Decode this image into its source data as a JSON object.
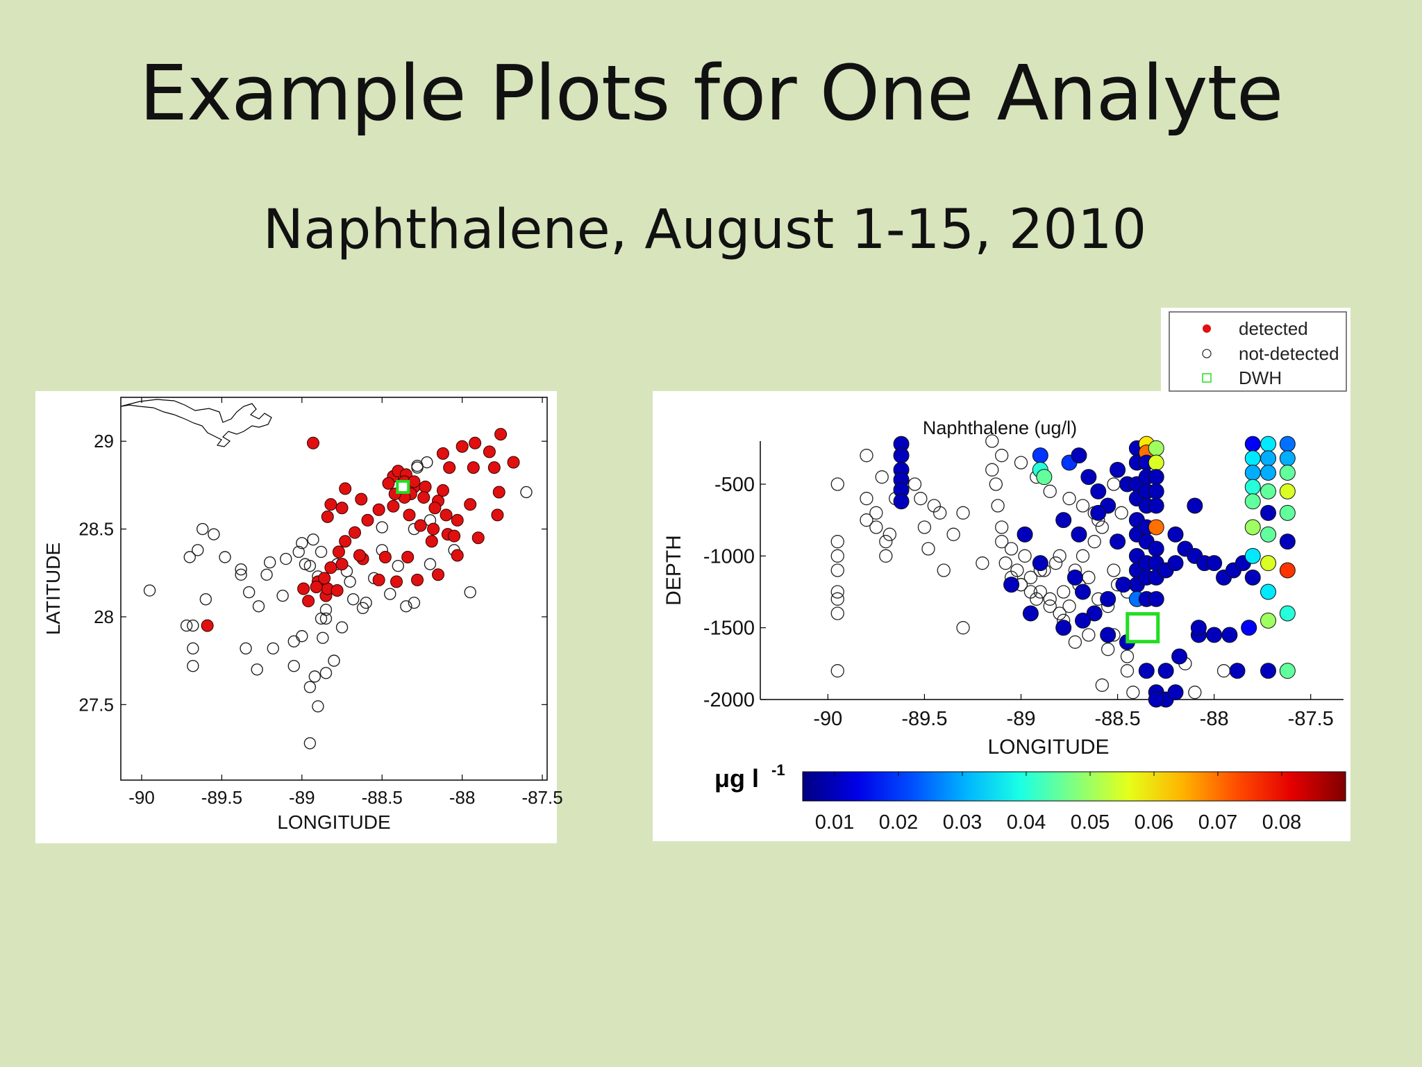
{
  "slide": {
    "title": "Example Plots for One Analyte",
    "subtitle": "Naphthalene, August 1-15, 2010"
  },
  "colors": {
    "background": "#d8e4bc",
    "detected": "#e01010",
    "dwh": "#22dd22"
  },
  "chart_data": [
    {
      "type": "scatter",
      "name": "map",
      "xlabel": "LONGITUDE",
      "ylabel": "LATITUDE",
      "xlim": [
        -90.13,
        -87.47
      ],
      "ylim": [
        27.07,
        29.25
      ],
      "xticks": [
        "-90",
        "-89.5",
        "-89",
        "-88.5",
        "-88",
        "-87.5"
      ],
      "xtick_values": [
        -90,
        -89.5,
        -89,
        -88.5,
        -88,
        -87.5
      ],
      "yticks": [
        "27.5",
        "28",
        "28.5",
        "29"
      ],
      "ytick_values": [
        27.5,
        28,
        28.5,
        29
      ],
      "grid": false,
      "series": [
        {
          "name": "detected",
          "marker": "filled-circle",
          "color": "#e01010",
          "x": [
            -88.93,
            -88.82,
            -88.73,
            -88.63,
            -88.43,
            -88.4,
            -88.35,
            -88.3,
            -88.32,
            -88.36,
            -88.42,
            -88.46,
            -88.12,
            -88.0,
            -88.08,
            -87.92,
            -87.76,
            -87.68,
            -87.83,
            -87.93,
            -87.8,
            -87.77,
            -87.78,
            -87.95,
            -88.03,
            -88.09,
            -88.18,
            -88.26,
            -88.33,
            -88.43,
            -88.52,
            -88.59,
            -88.67,
            -88.73,
            -88.77,
            -88.82,
            -88.9,
            -88.96,
            -88.85,
            -88.84,
            -88.78,
            -88.62,
            -88.48,
            -88.34,
            -88.19,
            -88.05,
            -87.9,
            -88.03,
            -88.15,
            -88.28,
            -88.41,
            -88.52,
            -88.64,
            -88.75,
            -88.84,
            -88.91,
            -88.99,
            -88.86,
            -88.75,
            -89.59,
            -88.36,
            -88.3,
            -88.23,
            -88.15,
            -88.1,
            -88.17,
            -88.24,
            -88.12
          ],
          "y": [
            28.99,
            28.64,
            28.73,
            28.67,
            28.8,
            28.83,
            28.81,
            28.74,
            28.7,
            28.68,
            28.7,
            28.76,
            28.93,
            28.97,
            28.85,
            28.99,
            29.04,
            28.88,
            28.94,
            28.85,
            28.85,
            28.71,
            28.58,
            28.64,
            28.55,
            28.47,
            28.5,
            28.52,
            28.58,
            28.63,
            28.61,
            28.55,
            28.48,
            28.43,
            28.37,
            28.28,
            28.2,
            28.09,
            28.12,
            28.16,
            28.15,
            28.33,
            28.34,
            28.34,
            28.43,
            28.46,
            28.45,
            28.35,
            28.24,
            28.21,
            28.2,
            28.21,
            28.35,
            28.62,
            28.57,
            28.17,
            28.16,
            28.22,
            28.3,
            27.95,
            28.77,
            28.77,
            28.74,
            28.66,
            28.58,
            28.62,
            28.68,
            28.72
          ]
        },
        {
          "name": "not-detected",
          "marker": "open-circle",
          "color": "#000000",
          "x": [
            -89.95,
            -89.7,
            -89.65,
            -89.62,
            -89.68,
            -89.55,
            -89.48,
            -89.38,
            -89.33,
            -89.27,
            -89.22,
            -89.2,
            -89.1,
            -89.0,
            -88.95,
            -88.9,
            -88.88,
            -88.85,
            -88.78,
            -88.72,
            -88.6,
            -88.55,
            -88.5,
            -88.45,
            -88.35,
            -88.3,
            -88.28,
            -88.2,
            -87.6,
            -89.6,
            -89.68,
            -89.72,
            -89.68,
            -89.38,
            -89.12,
            -89.02,
            -88.98,
            -88.93,
            -88.88,
            -88.85,
            -88.75,
            -88.68,
            -88.62,
            -88.5,
            -88.4,
            -88.3,
            -88.2,
            -88.05,
            -87.95,
            -89.35,
            -89.28,
            -89.18,
            -89.05,
            -88.92,
            -88.8,
            -88.87,
            -88.9,
            -88.95,
            -88.7,
            -89.0,
            -89.05,
            -88.95,
            -88.85,
            -88.28,
            -88.22
          ],
          "y": [
            28.15,
            28.34,
            28.38,
            28.5,
            27.95,
            28.47,
            28.34,
            28.27,
            28.14,
            28.06,
            28.24,
            28.31,
            28.33,
            28.42,
            28.29,
            28.23,
            27.99,
            27.99,
            28.3,
            28.26,
            28.08,
            28.22,
            28.51,
            28.13,
            28.06,
            28.08,
            28.86,
            28.55,
            28.71,
            28.1,
            27.82,
            27.95,
            27.72,
            28.24,
            28.12,
            28.37,
            28.3,
            28.44,
            28.37,
            28.04,
            27.94,
            28.1,
            28.05,
            28.38,
            28.29,
            28.5,
            28.3,
            28.38,
            28.14,
            27.82,
            27.7,
            27.82,
            27.86,
            27.66,
            27.75,
            27.88,
            27.49,
            27.28,
            28.2,
            27.89,
            27.72,
            27.6,
            27.68,
            28.85,
            28.88
          ]
        },
        {
          "name": "DWH",
          "marker": "open-square",
          "color": "#22dd22",
          "x": [
            -88.37
          ],
          "y": [
            28.74
          ]
        }
      ]
    },
    {
      "type": "scatter",
      "name": "depth-section",
      "title": "Naphthalene (ug/l)",
      "xlabel": "LONGITUDE",
      "ylabel": "DEPTH",
      "xlim": [
        -90.35,
        -87.33
      ],
      "ylim": [
        -2000,
        -200
      ],
      "xticks": [
        "-90",
        "-89.5",
        "-89",
        "-88.5",
        "-88",
        "-87.5"
      ],
      "xtick_values": [
        -90,
        -89.5,
        -89,
        -88.5,
        -88,
        -87.5
      ],
      "yticks": [
        "-500",
        "-1000",
        "-1500",
        "-2000"
      ],
      "ytick_values": [
        -500,
        -1000,
        -1500,
        -2000
      ],
      "grid": false,
      "legend": {
        "placement": "top-right-outside",
        "entries": [
          "detected",
          "not-detected",
          "DWH"
        ]
      },
      "colorbar": {
        "label": "μg l",
        "label_superscript": "-1",
        "tick_labels": [
          "0.01",
          "0.02",
          "0.03",
          "0.04",
          "0.05",
          "0.06",
          "0.07",
          "0.08"
        ],
        "tick_values": [
          0.01,
          0.02,
          0.03,
          0.04,
          0.05,
          0.06,
          0.07,
          0.08
        ],
        "range": [
          0.005,
          0.09
        ]
      },
      "series": [
        {
          "name": "not-detected",
          "marker": "open-circle",
          "color": "#000000",
          "x": [
            -89.95,
            -89.95,
            -89.95,
            -89.95,
            -89.95,
            -89.95,
            -89.95,
            -89.95,
            -89.8,
            -89.8,
            -89.8,
            -89.75,
            -89.75,
            -89.72,
            -89.7,
            -89.7,
            -89.68,
            -89.65,
            -89.55,
            -89.52,
            -89.5,
            -89.48,
            -89.45,
            -89.42,
            -89.4,
            -89.35,
            -89.3,
            -89.15,
            -89.15,
            -89.13,
            -89.12,
            -89.1,
            -89.1,
            -89.08,
            -89.05,
            -89.02,
            -89.0,
            -88.98,
            -88.95,
            -88.92,
            -88.9,
            -88.88,
            -88.85,
            -88.82,
            -88.8,
            -88.78,
            -88.75,
            -88.72,
            -88.7,
            -88.68,
            -88.65,
            -88.62,
            -88.6,
            -88.58,
            -88.55,
            -88.52,
            -88.5,
            -88.48,
            -88.45,
            -89.2,
            -89.05,
            -88.95,
            -88.85,
            -88.78,
            -88.72,
            -88.65,
            -88.55,
            -88.45,
            -89.0,
            -88.9,
            -88.8,
            -88.7,
            -88.6,
            -89.3,
            -88.58,
            -88.52,
            -88.45,
            -88.42,
            -89.1,
            -89.0,
            -88.92,
            -88.85,
            -88.75,
            -88.68,
            -88.62,
            -88.52,
            -87.95,
            -88.1,
            -88.15
          ],
          "y": [
            -500,
            -900,
            -1000,
            -1100,
            -1250,
            -1300,
            -1400,
            -1800,
            -300,
            -600,
            -750,
            -700,
            -800,
            -450,
            -900,
            -1000,
            -850,
            -600,
            -500,
            -600,
            -800,
            -950,
            -650,
            -700,
            -1100,
            -850,
            -700,
            -200,
            -400,
            -500,
            -650,
            -800,
            -900,
            -1050,
            -950,
            -1100,
            -1200,
            -1000,
            -1150,
            -1300,
            -1250,
            -1100,
            -1300,
            -1050,
            -1400,
            -1250,
            -1350,
            -1100,
            -1200,
            -1000,
            -1150,
            -900,
            -1300,
            -800,
            -1350,
            -1100,
            -1200,
            -700,
            -1250,
            -1050,
            -1150,
            -1250,
            -1350,
            -1450,
            -1600,
            -1550,
            -1650,
            -1700,
            -1200,
            -1100,
            -1000,
            -850,
            -750,
            -1500,
            -1900,
            -1550,
            -1800,
            -1950,
            -300,
            -350,
            -450,
            -550,
            -600,
            -650,
            -700,
            -500,
            -1800,
            -1950,
            -1750
          ]
        },
        {
          "name": "detected",
          "marker": "filled-circle-colormapped",
          "x": [
            -89.62,
            -89.62,
            -89.62,
            -89.62,
            -89.62,
            -89.62,
            -88.9,
            -88.9,
            -88.88,
            -88.75,
            -88.7,
            -88.65,
            -88.6,
            -88.55,
            -88.5,
            -88.45,
            -88.4,
            -88.4,
            -88.4,
            -88.4,
            -88.4,
            -88.4,
            -88.4,
            -88.4,
            -88.4,
            -88.4,
            -88.35,
            -88.35,
            -88.35,
            -88.35,
            -88.35,
            -88.35,
            -88.35,
            -88.35,
            -88.35,
            -88.35,
            -88.35,
            -88.35,
            -88.3,
            -88.3,
            -88.3,
            -88.3,
            -88.3,
            -88.3,
            -88.3,
            -88.3,
            -88.3,
            -88.3,
            -88.25,
            -88.2,
            -88.15,
            -88.1,
            -88.05,
            -88.0,
            -87.95,
            -87.9,
            -87.85,
            -87.8,
            -87.8,
            -87.8,
            -87.8,
            -87.8,
            -87.8,
            -87.8,
            -87.8,
            -87.82,
            -87.72,
            -87.72,
            -87.72,
            -87.72,
            -87.72,
            -87.72,
            -87.72,
            -87.72,
            -87.72,
            -87.72,
            -87.62,
            -87.62,
            -87.62,
            -87.62,
            -87.62,
            -87.62,
            -87.62,
            -87.62,
            -87.62,
            -88.5,
            -88.6,
            -88.7,
            -88.78,
            -88.98,
            -88.2,
            -88.1,
            -88.08,
            -88.18,
            -88.25,
            -88.9,
            -88.72,
            -88.68,
            -88.62,
            -88.55,
            -89.05,
            -88.95,
            -88.78,
            -88.68,
            -88.55,
            -88.47,
            -88.45,
            -88.35,
            -88.3,
            -88.25,
            -88.2,
            -88.3,
            -88.08,
            -88.0,
            -87.92,
            -87.88
          ],
          "y": [
            -220,
            -300,
            -400,
            -470,
            -540,
            -620,
            -300,
            -400,
            -450,
            -350,
            -300,
            -450,
            -550,
            -650,
            -400,
            -500,
            -250,
            -350,
            -500,
            -600,
            -750,
            -850,
            -1000,
            -1100,
            -1200,
            -1300,
            -220,
            -280,
            -350,
            -450,
            -550,
            -650,
            -800,
            -900,
            -1050,
            -1150,
            -1300,
            -1450,
            -250,
            -350,
            -450,
            -550,
            -650,
            -800,
            -950,
            -1050,
            -1150,
            -1300,
            -1100,
            -1050,
            -950,
            -1000,
            -1050,
            -1050,
            -1150,
            -1100,
            -1050,
            -220,
            -320,
            -420,
            -520,
            -620,
            -800,
            -1000,
            -1150,
            -1500,
            -220,
            -320,
            -420,
            -550,
            -700,
            -850,
            -1050,
            -1250,
            -1450,
            -1800,
            -220,
            -320,
            -420,
            -550,
            -700,
            -900,
            -1100,
            -1400,
            -1800,
            -900,
            -700,
            -850,
            -750,
            -850,
            -850,
            -650,
            -1550,
            -1700,
            -1800,
            -1050,
            -1150,
            -1250,
            -1400,
            -1550,
            -1200,
            -1400,
            -1500,
            -1450,
            -1300,
            -1200,
            -1600,
            -1800,
            -1950,
            -2000,
            -1950,
            -2000,
            -1500,
            -1550,
            -1550,
            -1800
          ],
          "values": [
            0.01,
            0.01,
            0.01,
            0.01,
            0.01,
            0.01,
            0.02,
            0.04,
            0.045,
            0.02,
            0.01,
            0.01,
            0.01,
            0.01,
            0.01,
            0.01,
            0.01,
            0.01,
            0.01,
            0.01,
            0.01,
            0.01,
            0.01,
            0.01,
            0.01,
            0.025,
            0.06,
            0.07,
            0.01,
            0.01,
            0.01,
            0.01,
            0.01,
            0.01,
            0.01,
            0.01,
            0.01,
            0.03,
            0.05,
            0.055,
            0.01,
            0.01,
            0.01,
            0.07,
            0.01,
            0.01,
            0.01,
            0.01,
            0.01,
            0.01,
            0.01,
            0.01,
            0.01,
            0.01,
            0.01,
            0.01,
            0.01,
            0.015,
            0.035,
            0.03,
            0.04,
            0.045,
            0.05,
            0.035,
            0.01,
            0.015,
            0.035,
            0.03,
            0.03,
            0.045,
            0.01,
            0.045,
            0.055,
            0.035,
            0.05,
            0.01,
            0.025,
            0.03,
            0.045,
            0.055,
            0.045,
            0.01,
            0.075,
            0.04,
            0.045,
            0.01,
            0.01,
            0.01,
            0.01,
            0.01,
            0.01,
            0.01,
            0.01,
            0.01,
            0.01,
            0.01,
            0.01,
            0.01,
            0.01,
            0.01,
            0.01,
            0.01,
            0.01,
            0.01,
            0.01,
            0.01,
            0.01,
            0.01,
            0.01,
            0.01,
            0.01,
            0.01,
            0.01,
            0.01,
            0.01,
            0.01
          ]
        },
        {
          "name": "DWH",
          "marker": "open-square",
          "color": "#22dd22",
          "x": [
            -88.37
          ],
          "y": [
            -1500
          ]
        }
      ]
    }
  ]
}
